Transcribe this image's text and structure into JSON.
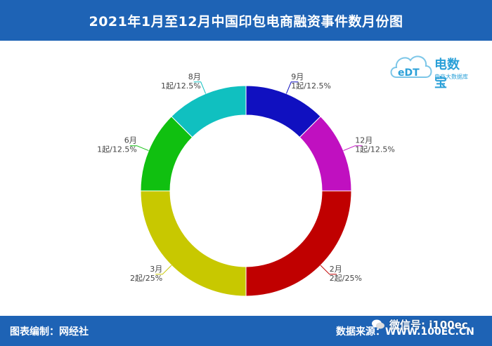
{
  "header": {
    "title": "2021年1月至12月中国印包电商融资事件数月份图"
  },
  "footer": {
    "editor": "图表编制：网经社",
    "source": "数据来源：WWW.100EC.CN",
    "wechat": "微信号: i100ec"
  },
  "logo": {
    "brand": "电数宝",
    "sub": "电商大数据库",
    "mark": "eDT"
  },
  "chart_data": {
    "type": "pie",
    "title": "2021年1月至12月中国印包电商融资事件数月份图",
    "slices": [
      {
        "label": "9月",
        "value": 1,
        "text": "1起/12.5%",
        "color": "#1010c0"
      },
      {
        "label": "12月",
        "value": 1,
        "text": "1起/12.5%",
        "color": "#c010c0"
      },
      {
        "label": "2月",
        "value": 2,
        "text": "2起/25%",
        "color": "#c00000"
      },
      {
        "label": "3月",
        "value": 2,
        "text": "2起/25%",
        "color": "#c8c800"
      },
      {
        "label": "6月",
        "value": 1,
        "text": "1起/12.5%",
        "color": "#10c010"
      },
      {
        "label": "8月",
        "value": 1,
        "text": "1起/12.5%",
        "color": "#10c0c0"
      }
    ],
    "donut": true
  }
}
